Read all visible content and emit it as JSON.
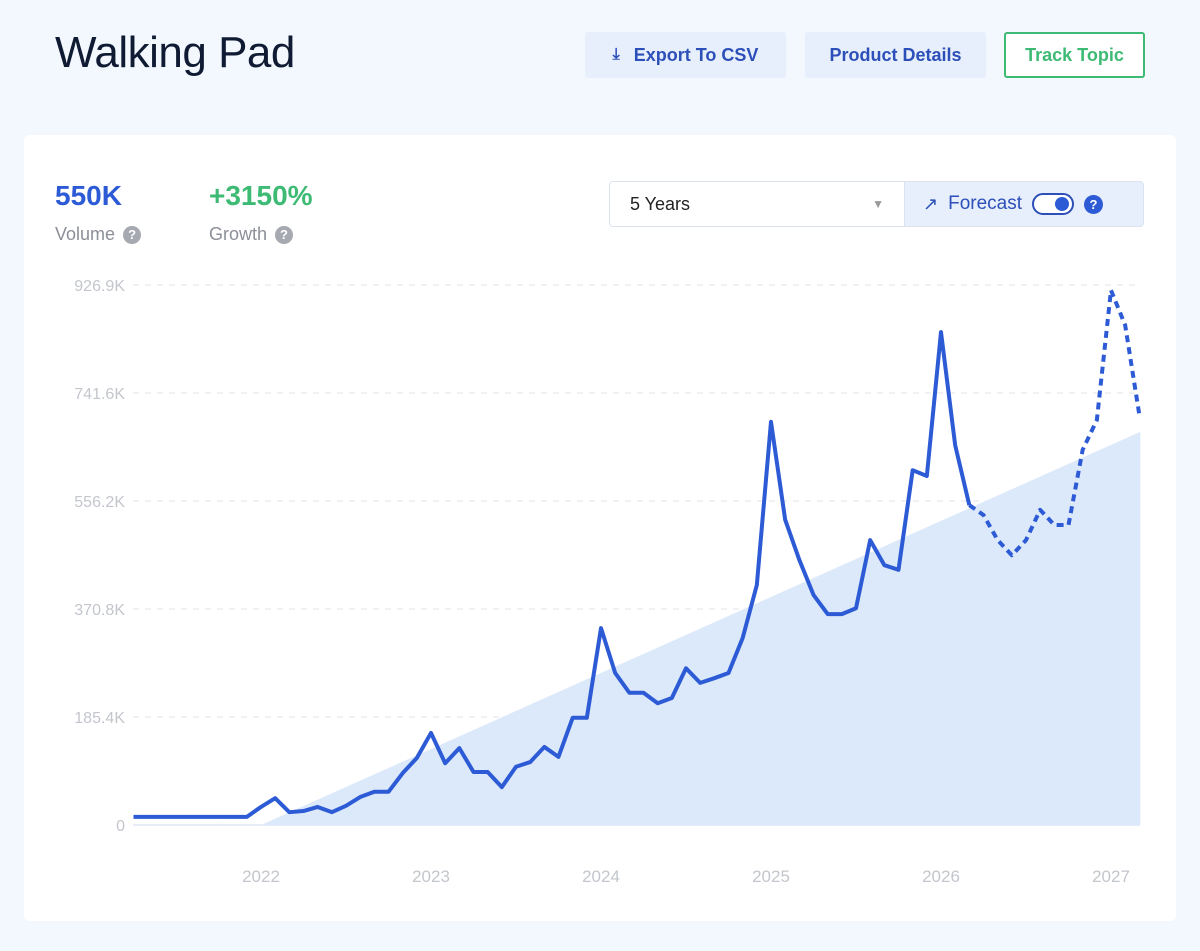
{
  "header": {
    "title": "Walking Pad",
    "export_label": "Export To CSV",
    "details_label": "Product Details",
    "track_label": "Track Topic"
  },
  "metrics": {
    "volume_value": "550K",
    "volume_label": "Volume",
    "growth_value": "+3150%",
    "growth_label": "Growth"
  },
  "controls": {
    "range_selected": "5 Years",
    "forecast_label": "Forecast",
    "forecast_on": true
  },
  "colors": {
    "line": "#2d5bd6",
    "trend_fill": "#dce9fa",
    "growth": "#3dbb74",
    "accent": "#2d4fb9"
  },
  "chart_data": {
    "type": "line",
    "ylim": [
      0,
      926.9
    ],
    "y_ticks": [
      "0",
      "185.4K",
      "370.8K",
      "556.2K",
      "741.6K",
      "926.9K"
    ],
    "y_tick_values": [
      0,
      185.4,
      370.8,
      556.2,
      741.6,
      926.9
    ],
    "x_ticks": [
      "2022",
      "2023",
      "2024",
      "2025",
      "2026",
      "2027"
    ],
    "grid": true,
    "unit": "K",
    "start_month": "2021-04",
    "series": [
      {
        "style": "solid",
        "values": [
          14,
          14,
          14,
          14,
          14,
          14,
          14,
          14,
          14,
          31,
          46,
          22,
          24,
          31,
          22,
          33,
          48,
          57,
          57,
          89,
          115,
          158,
          106,
          132,
          91,
          91,
          65,
          100,
          108,
          134,
          117,
          184,
          184,
          338,
          261,
          227,
          227,
          209,
          218,
          269,
          244,
          252,
          261,
          321,
          412,
          692,
          524,
          455,
          395,
          362,
          362,
          372,
          489,
          446,
          438,
          609,
          599,
          846,
          652,
          549
        ]
      },
      {
        "style": "dashed",
        "values": [
          532,
          489,
          463,
          489,
          541,
          515,
          515,
          644,
          695,
          918,
          858,
          704
        ]
      }
    ],
    "trend": {
      "start": {
        "date": "2022-01",
        "value": 0
      },
      "end": {
        "date": "2027-03",
        "value": 675
      }
    }
  }
}
